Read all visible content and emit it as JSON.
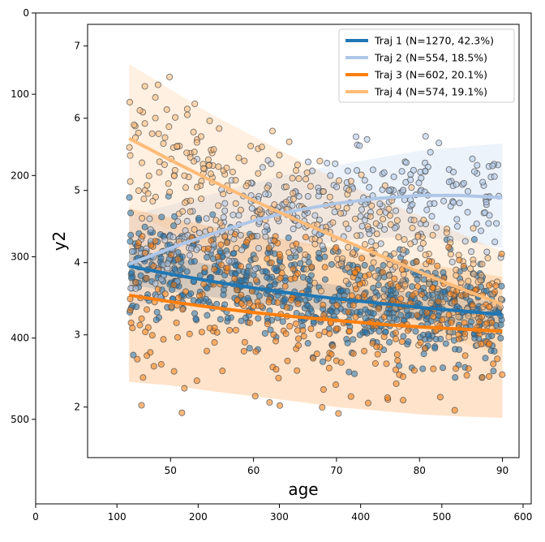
{
  "outer_axes": {
    "x_ticks": [
      "0",
      "100",
      "200",
      "300",
      "400",
      "500",
      "600"
    ],
    "x_tick_values": [
      0,
      100,
      200,
      300,
      400,
      500,
      600
    ],
    "y_ticks": [
      "0",
      "100",
      "200",
      "300",
      "400",
      "500"
    ],
    "y_tick_values": [
      0,
      100,
      200,
      300,
      400,
      500
    ],
    "xlim": [
      0,
      610
    ],
    "ylim": [
      604,
      0
    ]
  },
  "chart_data": {
    "type": "scatter",
    "title": "",
    "xlabel": "age",
    "ylabel": "y2",
    "xlim": [
      40,
      92
    ],
    "ylim": [
      1.3,
      7.3
    ],
    "x_ticks": [
      "50",
      "60",
      "70",
      "80",
      "90"
    ],
    "x_tick_values": [
      50,
      60,
      70,
      80,
      90
    ],
    "y_ticks": [
      "2",
      "3",
      "4",
      "5",
      "6",
      "7"
    ],
    "y_tick_values": [
      2,
      3,
      4,
      5,
      6,
      7
    ],
    "grid": false,
    "legend_position": "top-right",
    "series": [
      {
        "name": "Traj 1 (N=1270, 42.3%)",
        "color": "#1f77b4",
        "n": 1270,
        "fit_x": [
          45,
          50,
          55,
          60,
          65,
          70,
          75,
          80,
          85,
          90
        ],
        "fit_y": [
          3.95,
          3.84,
          3.74,
          3.65,
          3.57,
          3.5,
          3.44,
          3.38,
          3.33,
          3.28
        ],
        "ci_low": [
          3.7,
          3.6,
          3.52,
          3.45,
          3.38,
          3.32,
          3.26,
          3.2,
          3.15,
          3.1
        ],
        "ci_high": [
          4.2,
          4.08,
          3.97,
          3.86,
          3.77,
          3.69,
          3.62,
          3.56,
          3.51,
          3.46
        ],
        "scatter_range": [
          2.0,
          5.5
        ]
      },
      {
        "name": "Traj 2 (N=554, 18.5%)",
        "color": "#aec7e8",
        "n": 554,
        "fit_x": [
          45,
          50,
          55,
          60,
          65,
          70,
          75,
          80,
          85,
          90
        ],
        "fit_y": [
          3.98,
          4.2,
          4.4,
          4.58,
          4.72,
          4.82,
          4.89,
          4.93,
          4.93,
          4.9
        ],
        "ci_low": [
          3.3,
          3.6,
          3.85,
          4.05,
          4.2,
          4.3,
          4.35,
          4.35,
          4.3,
          4.2
        ],
        "ci_high": [
          4.65,
          4.8,
          4.95,
          5.1,
          5.25,
          5.35,
          5.45,
          5.55,
          5.6,
          5.65
        ],
        "scatter_range": [
          3.3,
          6.2
        ]
      },
      {
        "name": "Traj 3 (N=602, 20.1%)",
        "color": "#ff7f0e",
        "n": 602,
        "fit_x": [
          45,
          50,
          55,
          60,
          65,
          70,
          75,
          80,
          85,
          90
        ],
        "fit_y": [
          3.55,
          3.46,
          3.38,
          3.31,
          3.25,
          3.2,
          3.15,
          3.11,
          3.08,
          3.05
        ],
        "ci_low": [
          2.35,
          2.3,
          2.22,
          2.15,
          2.08,
          2.0,
          1.95,
          1.9,
          1.87,
          1.85
        ],
        "ci_high": [
          4.75,
          4.62,
          4.5,
          4.4,
          4.3,
          4.2,
          4.1,
          4.0,
          3.9,
          3.8
        ],
        "scatter_range": [
          1.9,
          4.4
        ]
      },
      {
        "name": "Traj 4 (N=574, 19.1%)",
        "color": "#ffbb78",
        "n": 574,
        "fit_x": [
          45,
          50,
          55,
          60,
          65,
          70,
          75,
          80,
          85,
          90
        ],
        "fit_y": [
          5.72,
          5.42,
          5.13,
          4.86,
          4.6,
          4.35,
          4.11,
          3.87,
          3.64,
          3.42
        ],
        "ci_low": [
          4.7,
          4.45,
          4.2,
          3.95,
          3.72,
          3.5,
          3.3,
          3.1,
          2.9,
          2.7
        ],
        "ci_high": [
          6.75,
          6.4,
          6.05,
          5.75,
          5.45,
          5.15,
          4.9,
          4.65,
          4.4,
          4.15
        ],
        "scatter_range": [
          2.8,
          7.0
        ]
      }
    ]
  },
  "colors": {
    "axis": "#000000",
    "marker_edge": "#555555"
  }
}
